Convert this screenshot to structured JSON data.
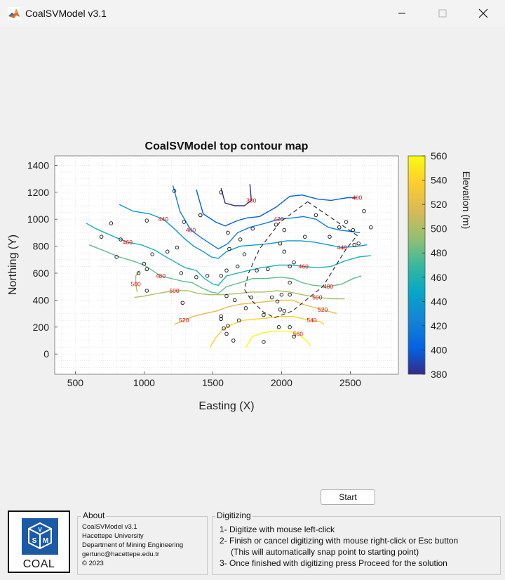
{
  "window": {
    "title": "CoalSVModel v3.1",
    "minimize_icon": "minimize-icon",
    "maximize_icon": "maximize-icon",
    "close_icon": "close-icon"
  },
  "chart_data": {
    "type": "contour",
    "title": "CoalSVModel top contour map",
    "xlabel": "Easting (X)",
    "ylabel": "Northing (Y)",
    "xlim": [
      350,
      2850
    ],
    "ylim": [
      -150,
      1470
    ],
    "xticks": [
      500,
      1000,
      1500,
      2000,
      2500
    ],
    "yticks": [
      0,
      200,
      400,
      600,
      800,
      1000,
      1200,
      1400
    ],
    "grid": "minor dotted",
    "colorbar": {
      "label": "Elevation (m)",
      "min": 380,
      "max": 560,
      "ticks": [
        380,
        400,
        420,
        440,
        460,
        480,
        500,
        520,
        540,
        560
      ],
      "colormap": "parula"
    },
    "contour_labels": [
      "380",
      "400",
      "400",
      "420",
      "440",
      "440",
      "460",
      "460",
      "480",
      "480",
      "500",
      "500",
      "500",
      "520",
      "520",
      "540",
      "560"
    ],
    "contours": [
      {
        "level": 380,
        "points": [
          [
            1560,
            1230
          ],
          [
            1590,
            1120
          ],
          [
            1660,
            1100
          ],
          [
            1730,
            1100
          ],
          [
            1780,
            1140
          ],
          [
            1770,
            1260
          ]
        ]
      },
      {
        "level": 400,
        "points": [
          [
            1380,
            1220
          ],
          [
            1430,
            1040
          ],
          [
            1520,
            980
          ],
          [
            1590,
            950
          ],
          [
            1680,
            990
          ],
          [
            1750,
            1010
          ],
          [
            1840,
            1020
          ],
          [
            1960,
            1090
          ],
          [
            2060,
            1170
          ],
          [
            2150,
            1180
          ],
          [
            2260,
            1150
          ],
          [
            2360,
            1140
          ],
          [
            2420,
            1150
          ],
          [
            2480,
            1160
          ],
          [
            2550,
            1160
          ]
        ]
      },
      {
        "level": 420,
        "points": [
          [
            1210,
            1250
          ],
          [
            1260,
            1060
          ],
          [
            1340,
            920
          ],
          [
            1420,
            860
          ],
          [
            1480,
            820
          ],
          [
            1540,
            780
          ],
          [
            1610,
            820
          ],
          [
            1680,
            900
          ],
          [
            1770,
            940
          ],
          [
            1880,
            970
          ],
          [
            1980,
            1000
          ],
          [
            2080,
            1010
          ],
          [
            2160,
            1020
          ],
          [
            2250,
            1000
          ],
          [
            2340,
            940
          ],
          [
            2420,
            920
          ],
          [
            2500,
            910
          ],
          [
            2570,
            900
          ]
        ]
      },
      {
        "level": 440,
        "points": [
          [
            820,
            1110
          ],
          [
            920,
            1060
          ],
          [
            1040,
            1040
          ],
          [
            1140,
            1000
          ],
          [
            1220,
            930
          ],
          [
            1290,
            860
          ],
          [
            1360,
            800
          ],
          [
            1430,
            760
          ],
          [
            1490,
            720
          ],
          [
            1540,
            710
          ],
          [
            1600,
            760
          ],
          [
            1700,
            800
          ],
          [
            1820,
            810
          ],
          [
            1920,
            820
          ],
          [
            2040,
            840
          ],
          [
            2140,
            840
          ],
          [
            2240,
            830
          ],
          [
            2340,
            810
          ],
          [
            2440,
            790
          ],
          [
            2560,
            800
          ],
          [
            2620,
            810
          ]
        ]
      },
      {
        "level": 460,
        "points": [
          [
            580,
            970
          ],
          [
            650,
            930
          ],
          [
            760,
            880
          ],
          [
            880,
            830
          ],
          [
            980,
            810
          ],
          [
            1080,
            770
          ],
          [
            1160,
            720
          ],
          [
            1230,
            680
          ],
          [
            1300,
            640
          ],
          [
            1380,
            620
          ],
          [
            1440,
            560
          ],
          [
            1500,
            520
          ],
          [
            1540,
            510
          ],
          [
            1600,
            580
          ],
          [
            1680,
            600
          ],
          [
            1760,
            620
          ],
          [
            1850,
            640
          ],
          [
            1980,
            660
          ],
          [
            2080,
            660
          ],
          [
            2160,
            650
          ],
          [
            2260,
            640
          ],
          [
            2360,
            650
          ],
          [
            2460,
            690
          ],
          [
            2560,
            720
          ],
          [
            2650,
            730
          ]
        ]
      },
      {
        "level": 480,
        "points": [
          [
            600,
            810
          ],
          [
            700,
            770
          ],
          [
            820,
            720
          ],
          [
            920,
            690
          ],
          [
            1000,
            660
          ],
          [
            1060,
            620
          ],
          [
            1120,
            580
          ],
          [
            1200,
            560
          ],
          [
            1280,
            540
          ],
          [
            1350,
            530
          ],
          [
            1420,
            490
          ],
          [
            1490,
            460
          ],
          [
            1540,
            450
          ],
          [
            1600,
            500
          ],
          [
            1700,
            530
          ],
          [
            1790,
            560
          ],
          [
            1880,
            560
          ],
          [
            1990,
            570
          ],
          [
            2080,
            560
          ],
          [
            2150,
            530
          ],
          [
            2230,
            510
          ],
          [
            2340,
            500
          ],
          [
            2440,
            520
          ],
          [
            2520,
            560
          ],
          [
            2580,
            580
          ]
        ]
      },
      {
        "level": 500,
        "points": [
          [
            930,
            420
          ],
          [
            1000,
            430
          ],
          [
            1100,
            450
          ],
          [
            1220,
            470
          ],
          [
            1320,
            470
          ],
          [
            1390,
            450
          ],
          [
            1470,
            440
          ],
          [
            1580,
            440
          ],
          [
            1690,
            450
          ],
          [
            1780,
            460
          ],
          [
            1870,
            460
          ],
          [
            1970,
            470
          ],
          [
            2060,
            460
          ],
          [
            2150,
            440
          ],
          [
            2260,
            420
          ],
          [
            2360,
            410
          ],
          [
            2460,
            410
          ]
        ]
      },
      {
        "level": 500,
        "points": [
          [
            950,
            460
          ],
          [
            940,
            520
          ],
          [
            940,
            580
          ],
          [
            970,
            620
          ]
        ]
      },
      {
        "level": 520,
        "points": [
          [
            1220,
            220
          ],
          [
            1290,
            250
          ],
          [
            1360,
            280
          ],
          [
            1440,
            300
          ],
          [
            1530,
            320
          ],
          [
            1610,
            350
          ],
          [
            1700,
            370
          ],
          [
            1800,
            380
          ],
          [
            1900,
            390
          ],
          [
            2000,
            400
          ],
          [
            2080,
            400
          ],
          [
            2150,
            370
          ],
          [
            2220,
            350
          ],
          [
            2300,
            330
          ],
          [
            2400,
            300
          ]
        ]
      },
      {
        "level": 540,
        "points": [
          [
            1480,
            50
          ],
          [
            1520,
            120
          ],
          [
            1570,
            180
          ],
          [
            1640,
            220
          ],
          [
            1720,
            250
          ],
          [
            1820,
            260
          ],
          [
            1920,
            270
          ],
          [
            2000,
            280
          ],
          [
            2080,
            280
          ],
          [
            2160,
            260
          ],
          [
            2220,
            250
          ],
          [
            2280,
            240
          ],
          [
            2310,
            220
          ]
        ]
      },
      {
        "level": 560,
        "points": [
          [
            1740,
            50
          ],
          [
            1790,
            130
          ],
          [
            1870,
            160
          ],
          [
            1960,
            170
          ],
          [
            2050,
            170
          ],
          [
            2120,
            150
          ],
          [
            2180,
            100
          ],
          [
            2210,
            60
          ]
        ]
      }
    ],
    "polygon": [
      [
        2190,
        1130
      ],
      [
        2550,
        880
      ],
      [
        2470,
        780
      ],
      [
        2300,
        500
      ],
      [
        2080,
        320
      ],
      [
        1950,
        270
      ],
      [
        1870,
        310
      ],
      [
        1780,
        400
      ],
      [
        1730,
        480
      ],
      [
        1760,
        600
      ],
      [
        1840,
        780
      ],
      [
        1990,
        980
      ],
      [
        2190,
        1130
      ]
    ],
    "wells": [
      [
        1220,
        1210
      ],
      [
        1410,
        1030
      ],
      [
        1410,
        1030
      ],
      [
        1560,
        1200
      ],
      [
        1610,
        900
      ],
      [
        1620,
        780
      ],
      [
        1700,
        850
      ],
      [
        1730,
        740
      ],
      [
        1790,
        930
      ],
      [
        1960,
        960
      ],
      [
        1990,
        820
      ],
      [
        2020,
        920
      ],
      [
        2020,
        760
      ],
      [
        2170,
        870
      ],
      [
        2250,
        1030
      ],
      [
        2350,
        870
      ],
      [
        2420,
        940
      ],
      [
        2470,
        980
      ],
      [
        2520,
        920
      ],
      [
        2600,
        1060
      ],
      [
        2650,
        940
      ],
      [
        2530,
        810
      ],
      [
        2560,
        820
      ],
      [
        2090,
        680
      ],
      [
        2060,
        650
      ],
      [
        1900,
        630
      ],
      [
        1820,
        620
      ],
      [
        1680,
        650
      ],
      [
        1600,
        620
      ],
      [
        1560,
        580
      ],
      [
        1460,
        580
      ],
      [
        1380,
        570
      ],
      [
        1270,
        600
      ],
      [
        1240,
        790
      ],
      [
        1170,
        760
      ],
      [
        1060,
        740
      ],
      [
        1000,
        670
      ],
      [
        1020,
        630
      ],
      [
        960,
        600
      ],
      [
        800,
        720
      ],
      [
        690,
        870
      ],
      [
        760,
        970
      ],
      [
        830,
        850
      ],
      [
        1020,
        990
      ],
      [
        1290,
        980
      ],
      [
        1020,
        470
      ],
      [
        1280,
        380
      ],
      [
        1600,
        430
      ],
      [
        1660,
        400
      ],
      [
        1690,
        250
      ],
      [
        1610,
        210
      ],
      [
        1580,
        190
      ],
      [
        1600,
        150
      ],
      [
        1650,
        100
      ],
      [
        1740,
        340
      ],
      [
        1780,
        420
      ],
      [
        1870,
        290
      ],
      [
        1930,
        420
      ],
      [
        1970,
        390
      ],
      [
        2000,
        440
      ],
      [
        2060,
        440
      ],
      [
        2020,
        320
      ],
      [
        1990,
        330
      ],
      [
        2060,
        200
      ],
      [
        2090,
        130
      ],
      [
        1980,
        200
      ],
      [
        1870,
        90
      ],
      [
        2060,
        530
      ],
      [
        1560,
        280
      ],
      [
        1560,
        260
      ]
    ]
  },
  "buttons": {
    "start": "Start"
  },
  "logo": {
    "text": "COAL"
  },
  "about": {
    "title": "About",
    "lines": [
      "CoalSVModel v3.1",
      "Hacettepe University",
      "Department of Mining Engineering",
      "gertunc@hacettepe.edu.tr",
      "© 2023"
    ]
  },
  "digitizing": {
    "title": "Digitizing",
    "lines": [
      "1- Digitize with mouse left-click",
      "2- Finish or cancel digitizing with mouse right-click or Esc button",
      "(This will automatically snap point to starting point)",
      "3- Once finished with digitizing press Proceed for the solution"
    ]
  }
}
